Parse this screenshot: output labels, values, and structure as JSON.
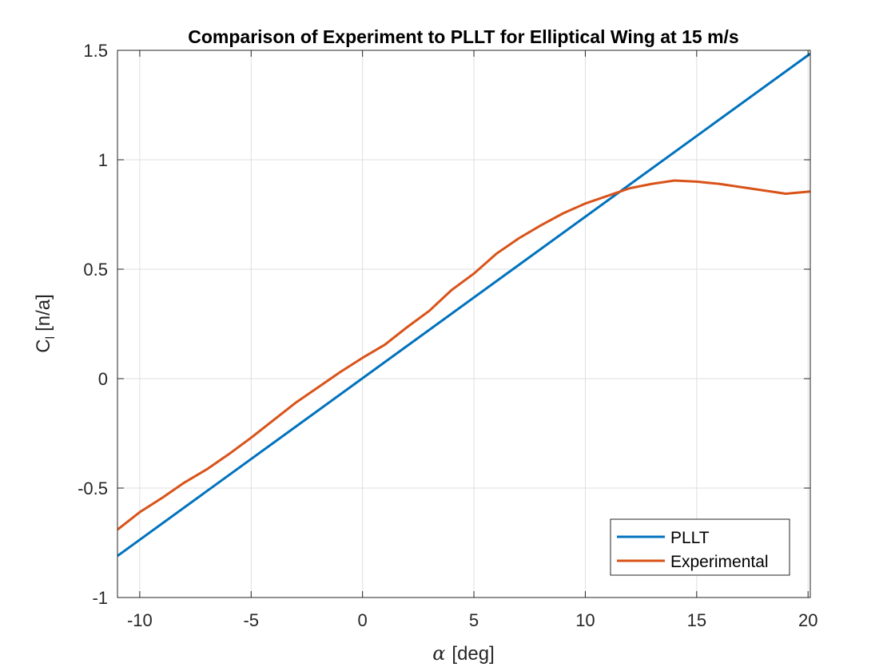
{
  "chart_data": {
    "type": "line",
    "title": "Comparison of Experiment to PLLT for Elliptical Wing at 15 m/s",
    "xlabel": {
      "symbol": "α",
      "text": "[deg]"
    },
    "ylabel": {
      "main": "C",
      "subscript": "l",
      "suffix": "[n/a]"
    },
    "xlim": [
      -11,
      20.1
    ],
    "ylim": [
      -1,
      1.5
    ],
    "xticks": [
      -10,
      -5,
      0,
      5,
      10,
      15,
      20
    ],
    "xtick_labels": [
      "-10",
      "-5",
      "0",
      "5",
      "10",
      "15",
      "20"
    ],
    "yticks": [
      -1,
      -0.5,
      0,
      0.5,
      1,
      1.5
    ],
    "ytick_labels": [
      "-1",
      "-0.5",
      "0",
      "0.5",
      "1",
      "1.5"
    ],
    "grid": true,
    "legend_position": "bottom-right",
    "series": [
      {
        "name": "PLLT",
        "color": "#0072BD",
        "x": [
          -11,
          20.1
        ],
        "y": [
          -0.81,
          1.485
        ]
      },
      {
        "name": "Experimental",
        "color": "#D95319",
        "x": [
          -11,
          -10,
          -9,
          -8,
          -7,
          -6,
          -5,
          -4,
          -3,
          -2,
          -1,
          0,
          1,
          2,
          3,
          4,
          5,
          6,
          7,
          8,
          9,
          10,
          11,
          12,
          13,
          14,
          15,
          16,
          17,
          18,
          19,
          20.1
        ],
        "y": [
          -0.69,
          -0.61,
          -0.545,
          -0.475,
          -0.415,
          -0.345,
          -0.27,
          -0.19,
          -0.11,
          -0.04,
          0.03,
          0.095,
          0.155,
          0.235,
          0.31,
          0.405,
          0.48,
          0.57,
          0.64,
          0.7,
          0.755,
          0.8,
          0.835,
          0.87,
          0.89,
          0.905,
          0.9,
          0.89,
          0.875,
          0.86,
          0.845,
          0.855
        ]
      }
    ]
  }
}
